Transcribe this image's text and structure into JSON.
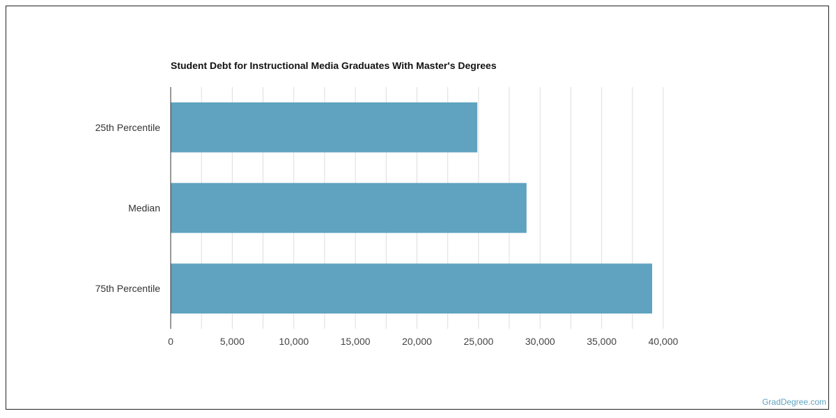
{
  "chart_data": {
    "type": "bar",
    "orientation": "horizontal",
    "title": "Student Debt for Instructional Media Graduates With Master's Degrees",
    "xlabel": "",
    "ylabel": "",
    "categories": [
      "25th Percentile",
      "Median",
      "75th Percentile"
    ],
    "values": [
      24900,
      28900,
      39100
    ],
    "xlim": [
      0,
      40000
    ],
    "ticks": [
      "0",
      "5,000",
      "10,000",
      "15,000",
      "20,000",
      "25,000",
      "30,000",
      "35,000",
      "40,000"
    ],
    "tick_values": [
      0,
      5000,
      10000,
      15000,
      20000,
      25000,
      30000,
      35000,
      40000
    ],
    "grid": true,
    "bar_color": "#5fa3c0",
    "grid_color": "#dddddd"
  },
  "watermark": "GradDegree.com"
}
